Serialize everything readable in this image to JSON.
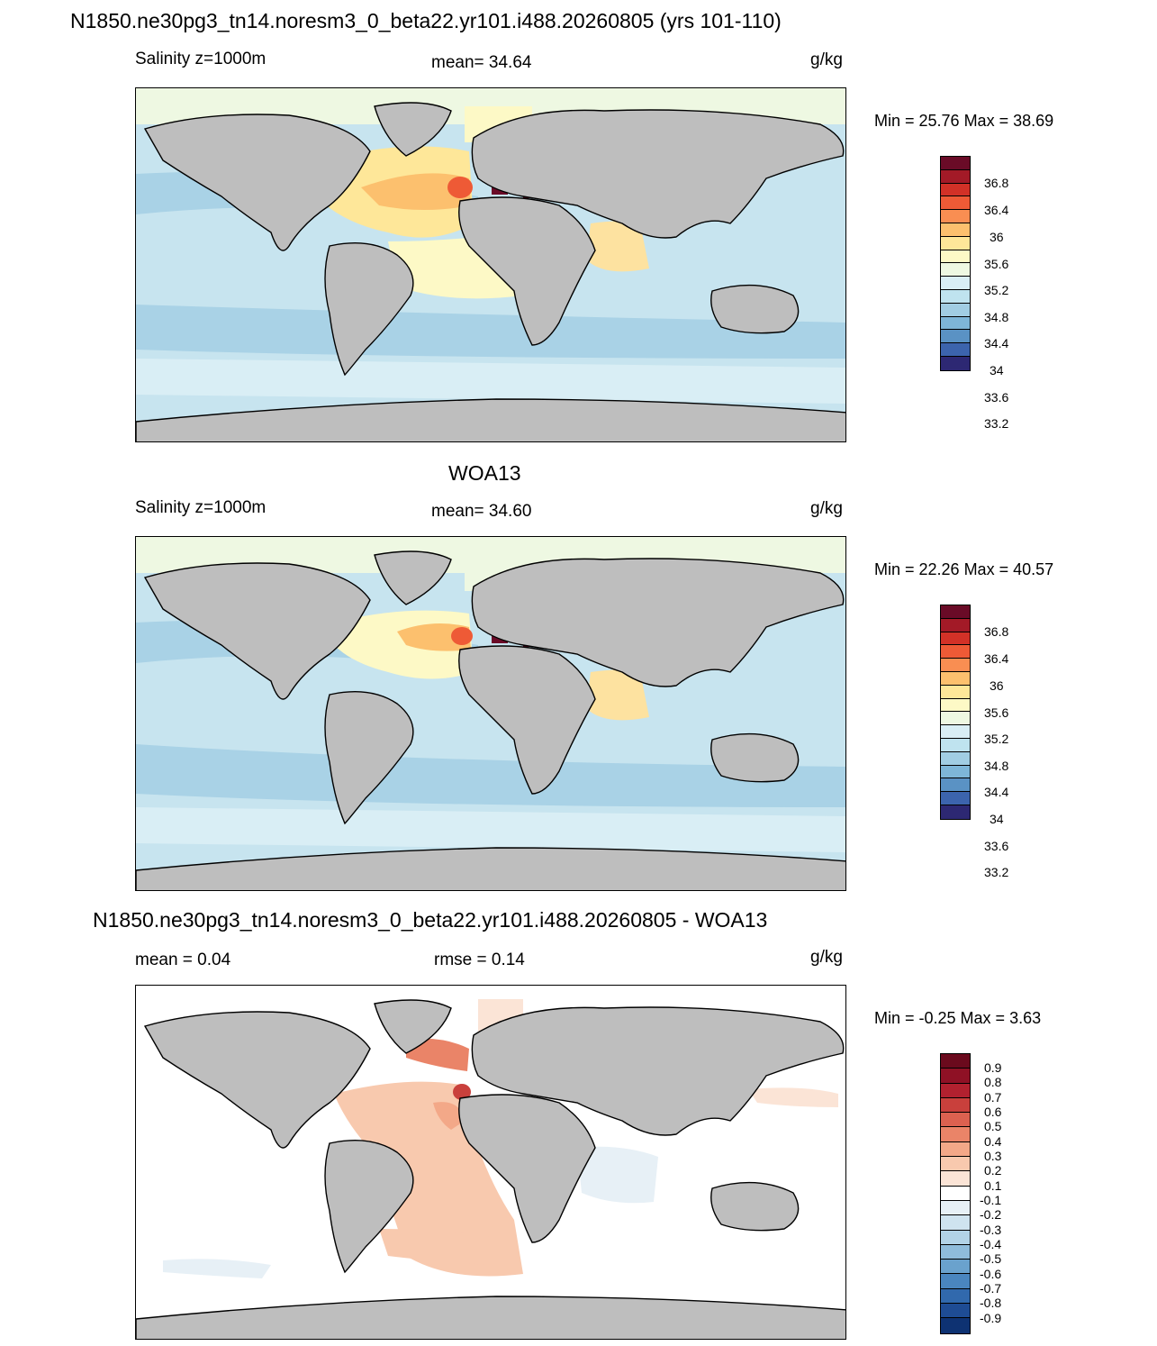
{
  "main_title": "N1850.ne30pg3_tn14.noresm3_0_beta22.yr101.i488.20260805 (yrs 101-110)",
  "panel1": {
    "left": "Salinity z=1000m",
    "center": "mean=  34.64",
    "units": "g/kg",
    "minmax": "Min =  25.76 Max =  38.69"
  },
  "panel2": {
    "title": "WOA13",
    "left": "Salinity z=1000m",
    "center": "mean=  34.60",
    "units": "g/kg",
    "minmax": "Min =  22.26 Max =  40.57"
  },
  "panel3": {
    "title": "N1850.ne30pg3_tn14.noresm3_0_beta22.yr101.i488.20260805 - WOA13",
    "left": "mean =   0.04",
    "center": "rmse =   0.14",
    "units": "g/kg",
    "minmax": "Min =  -0.25 Max =   3.63"
  },
  "colorbar_salinity": {
    "colors": [
      "#6a0b27",
      "#a31a27",
      "#d23127",
      "#ee5a36",
      "#f98e52",
      "#fcc06e",
      "#fee799",
      "#fdf9c6",
      "#eef8e2",
      "#d9eef5",
      "#bfe3ef",
      "#a1cde3",
      "#7eb6d8",
      "#5a92c4",
      "#3c64ad",
      "#2d2873"
    ],
    "labels": [
      "36.8",
      "36.4",
      "36",
      "35.6",
      "35.2",
      "34.8",
      "34.4",
      "34",
      "33.6",
      "33.2"
    ]
  },
  "colorbar_diff": {
    "colors": [
      "#6b0a1d",
      "#8f1125",
      "#b2212f",
      "#c9403c",
      "#dc6150",
      "#ea8468",
      "#f3a888",
      "#f8c9ae",
      "#fbe4d6",
      "#ffffff",
      "#e7f0f6",
      "#cfe3ef",
      "#b2d3e7",
      "#8fbcdb",
      "#6aa2cd",
      "#4a86bf",
      "#3169ad",
      "#1e4c94",
      "#0e3272"
    ],
    "labels": [
      "0.9",
      "0.8",
      "0.7",
      "0.6",
      "0.5",
      "0.4",
      "0.3",
      "0.2",
      "0.1",
      "-0.1",
      "-0.2",
      "-0.3",
      "-0.4",
      "-0.5",
      "-0.6",
      "-0.7",
      "-0.8",
      "-0.9"
    ]
  }
}
